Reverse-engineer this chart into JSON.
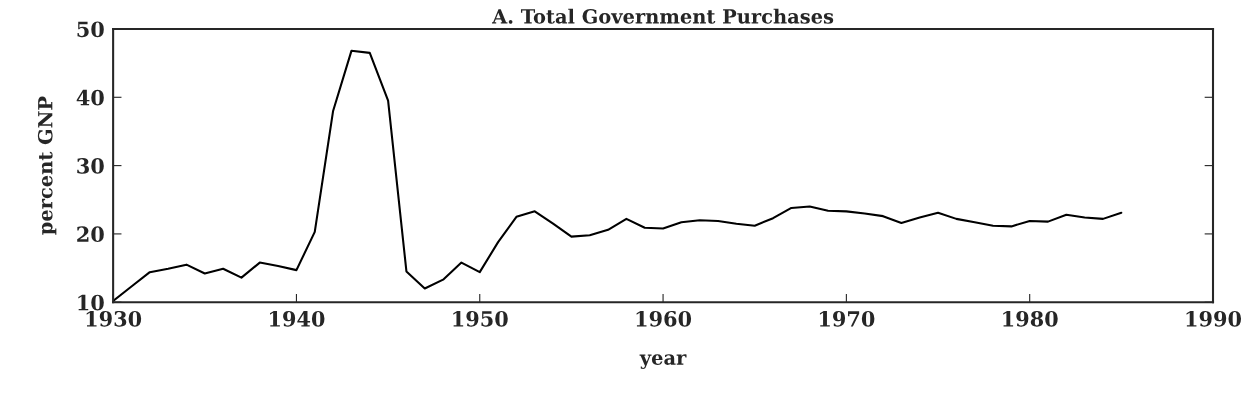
{
  "chart_data": {
    "type": "line",
    "title": "A. Total Government Purchases",
    "xlabel": "year",
    "ylabel": "percent GNP",
    "x": [
      1930,
      1931,
      1932,
      1933,
      1934,
      1935,
      1936,
      1937,
      1938,
      1939,
      1940,
      1941,
      1942,
      1943,
      1944,
      1945,
      1946,
      1947,
      1948,
      1949,
      1950,
      1951,
      1952,
      1953,
      1954,
      1955,
      1956,
      1957,
      1958,
      1959,
      1960,
      1961,
      1962,
      1963,
      1964,
      1965,
      1966,
      1967,
      1968,
      1969,
      1970,
      1971,
      1972,
      1973,
      1974,
      1975,
      1976,
      1977,
      1978,
      1979,
      1980,
      1981,
      1982,
      1983,
      1984,
      1985
    ],
    "series": [
      {
        "color": "#000000",
        "values": [
          10.2,
          12.3,
          14.4,
          14.9,
          15.5,
          14.2,
          14.9,
          13.6,
          15.8,
          15.3,
          14.7,
          20.3,
          38.0,
          46.8,
          46.5,
          39.5,
          14.5,
          12.0,
          13.3,
          15.8,
          14.4,
          18.8,
          22.5,
          23.3,
          21.5,
          19.6,
          19.8,
          20.6,
          22.2,
          20.9,
          20.8,
          21.7,
          22.0,
          21.9,
          21.5,
          21.2,
          22.3,
          23.8,
          24.0,
          23.4,
          23.3,
          23.0,
          22.6,
          21.6,
          22.4,
          23.1,
          22.2,
          21.7,
          21.2,
          21.1,
          21.9,
          21.8,
          22.8,
          22.4,
          22.2,
          23.1
        ]
      }
    ],
    "xlim": [
      1930,
      1990
    ],
    "xticks": [
      1930,
      1940,
      1950,
      1960,
      1970,
      1980,
      1990
    ],
    "ylim": [
      10,
      50
    ],
    "yticks": [
      10,
      20,
      30,
      40,
      50
    ],
    "grid": false,
    "legend": false,
    "marker": "none",
    "line_style": "solid"
  }
}
